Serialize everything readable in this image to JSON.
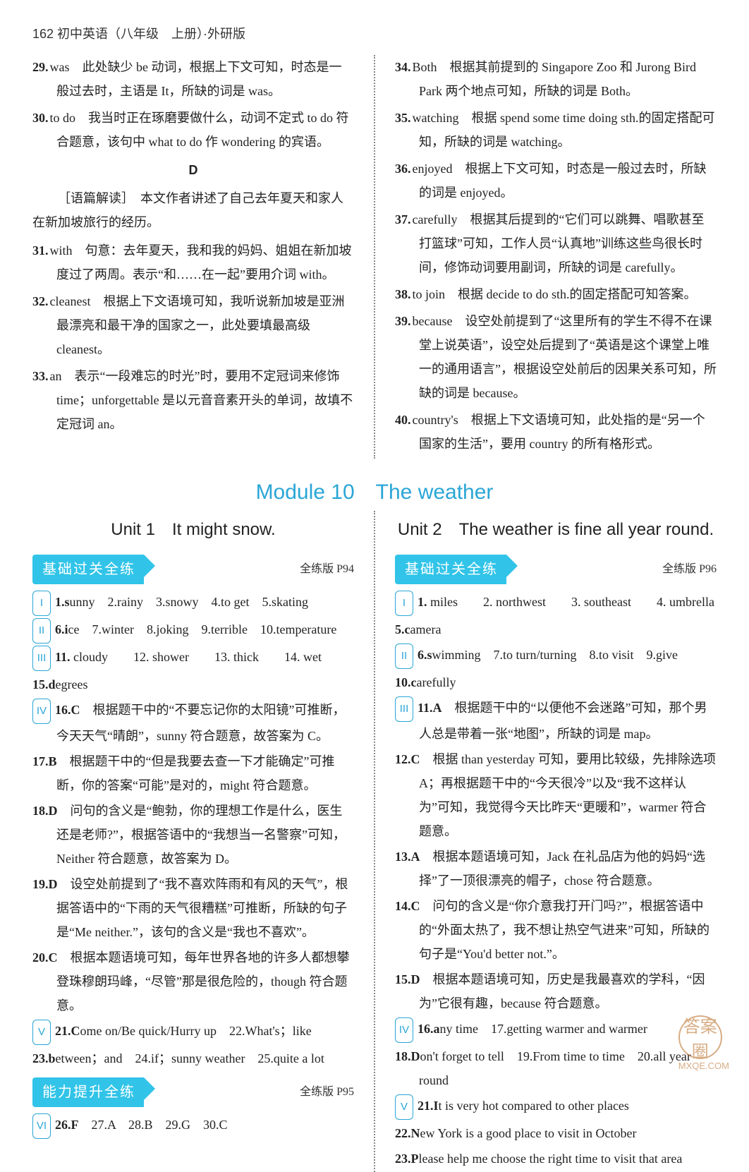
{
  "header": "162 初中英语（八年级　上册）·外研版",
  "top": {
    "left": [
      {
        "num": "29.",
        "ans": "was",
        "text": "　此处缺少 be 动词，根据上下文可知，时态是一般过去时，主语是 It，所缺的词是 was。"
      },
      {
        "num": "30.",
        "ans": "to do",
        "text": "　我当时正在琢磨要做什么，动词不定式 to do 符合题意，该句中 what to do 作 wondering 的宾语。"
      }
    ],
    "sectionD": "D",
    "dIntro": "［语篇解读］　本文作者讲述了自己去年夏天和家人在新加坡旅行的经历。",
    "leftD": [
      {
        "num": "31.",
        "ans": "with",
        "text": "　句意：去年夏天，我和我的妈妈、姐姐在新加坡度过了两周。表示“和……在一起”要用介词 with。"
      },
      {
        "num": "32.",
        "ans": "cleanest",
        "text": "　根据上下文语境可知，我听说新加坡是亚洲最漂亮和最干净的国家之一，此处要填最高级 cleanest。"
      },
      {
        "num": "33.",
        "ans": "an",
        "text": "　表示“一段难忘的时光”时，要用不定冠词来修饰 time；unforgettable 是以元音音素开头的单词，故填不定冠词 an。"
      }
    ],
    "right": [
      {
        "num": "34.",
        "ans": "Both",
        "text": "　根据其前提到的 Singapore Zoo 和 Jurong Bird Park 两个地点可知，所缺的词是 Both。"
      },
      {
        "num": "35.",
        "ans": "watching",
        "text": "　根据 spend some time doing sth.的固定搭配可知，所缺的词是 watching。"
      },
      {
        "num": "36.",
        "ans": "enjoyed",
        "text": "　根据上下文可知，时态是一般过去时，所缺的词是 enjoyed。"
      },
      {
        "num": "37.",
        "ans": "carefully",
        "text": "　根据其后提到的“它们可以跳舞、唱歌甚至打篮球”可知，工作人员“认真地”训练这些鸟很长时间，修饰动词要用副词，所缺的词是 carefully。"
      },
      {
        "num": "38.",
        "ans": "to join",
        "text": "　根据 decide to do sth.的固定搭配可知答案。"
      },
      {
        "num": "39.",
        "ans": "because",
        "text": "　设空处前提到了“这里所有的学生不得不在课堂上说英语”，设空处后提到了“英语是这个课堂上唯一的通用语言”，根据设空处前后的因果关系可知，所缺的词是 because。"
      },
      {
        "num": "40.",
        "ans": "country's",
        "text": "　根据上下文语境可知，此处指的是“另一个国家的生活”，要用 country 的所有格形式。"
      }
    ]
  },
  "moduleTitle": "Module 10　The weather",
  "unit1": {
    "title": "Unit 1　It might snow.",
    "badge1": "基础过关全练",
    "ref1": "全练版 P94",
    "lines": [
      {
        "roman": "I",
        "text": "1.sunny　2.rainy　3.snowy　4.to get　5.skating"
      },
      {
        "roman": "II",
        "text": "6.ice　7.winter　8.joking　9.terrible　10.temperature"
      },
      {
        "roman": "III",
        "text": "11. cloudy　　12. shower　　13. thick　　14. wet"
      },
      {
        "roman": "",
        "text": "15.degrees"
      },
      {
        "roman": "IV",
        "text": "16.C　根据题干中的“不要忘记你的太阳镜”可推断，今天天气“晴朗”，sunny 符合题意，故答案为 C。"
      },
      {
        "roman": "",
        "text": "17.B　根据题干中的“但是我要去查一下才能确定”可推断，你的答案“可能”是对的，might 符合题意。"
      },
      {
        "roman": "",
        "text": "18.D　问句的含义是“鲍勃，你的理想工作是什么，医生还是老师?”，根据答语中的“我想当一名警察”可知，Neither 符合题意，故答案为 D。"
      },
      {
        "roman": "",
        "text": "19.D　设空处前提到了“我不喜欢阵雨和有风的天气”，根据答语中的“下雨的天气很糟糕”可推断，所缺的句子是“Me neither.”，该句的含义是“我也不喜欢”。"
      },
      {
        "roman": "",
        "text": "20.C　根据本题语境可知，每年世界各地的许多人都想攀登珠穆朗玛峰，“尽管”那是很危险的，though 符合题意。"
      },
      {
        "roman": "V",
        "text": "21.Come on/Be quick/Hurry up　22.What's；like"
      },
      {
        "roman": "",
        "text": "23.between；and　24.if；sunny weather　25.quite a lot"
      }
    ],
    "badge2": "能力提升全练",
    "ref2": "全练版 P95",
    "lines2": [
      {
        "roman": "VI",
        "text": "26.F　27.A　28.B　29.G　30.C"
      }
    ]
  },
  "unit2": {
    "title": "Unit 2　The weather is fine all year round.",
    "badge1": "基础过关全练",
    "ref1": "全练版 P96",
    "lines": [
      {
        "roman": "I",
        "text": "1. miles　　2. northwest　　3. southeast　　4. umbrella"
      },
      {
        "roman": "",
        "text": "5.camera"
      },
      {
        "roman": "II",
        "text": "6.swimming　7.to turn/turning　8.to visit　9.give"
      },
      {
        "roman": "",
        "text": "10.carefully"
      },
      {
        "roman": "III",
        "text": "11.A　根据题干中的“以便他不会迷路”可知，那个男人总是带着一张“地图”，所缺的词是 map。"
      },
      {
        "roman": "",
        "text": "12.C　根据 than yesterday 可知，要用比较级，先排除选项 A；再根据题干中的“今天很冷”以及“我不这样认为”可知，我觉得今天比昨天“更暖和”，warmer 符合题意。"
      },
      {
        "roman": "",
        "text": "13.A　根据本题语境可知，Jack 在礼品店为他的妈妈“选择”了一顶很漂亮的帽子，chose 符合题意。"
      },
      {
        "roman": "",
        "text": "14.C　问句的含义是“你介意我打开门吗?”，根据答语中的“外面太热了，我不想让热空气进来”可知，所缺的句子是“You'd better not.”。"
      },
      {
        "roman": "",
        "text": "15.D　根据本题语境可知，历史是我最喜欢的学科，“因为”它很有趣，because 符合题意。"
      },
      {
        "roman": "IV",
        "text": "16.any time　17.getting warmer and warmer"
      },
      {
        "roman": "",
        "text": "18.Don't forget to tell　19.From time to time　20.all year round"
      },
      {
        "roman": "V",
        "text": "21.It is very hot compared to other places"
      },
      {
        "roman": "",
        "text": "22.New York is a good place to visit in October"
      },
      {
        "roman": "",
        "text": "23.Please help me choose the right time to visit that area"
      }
    ]
  },
  "watermark": {
    "text": "答案圈",
    "url": "MXQE.COM"
  }
}
